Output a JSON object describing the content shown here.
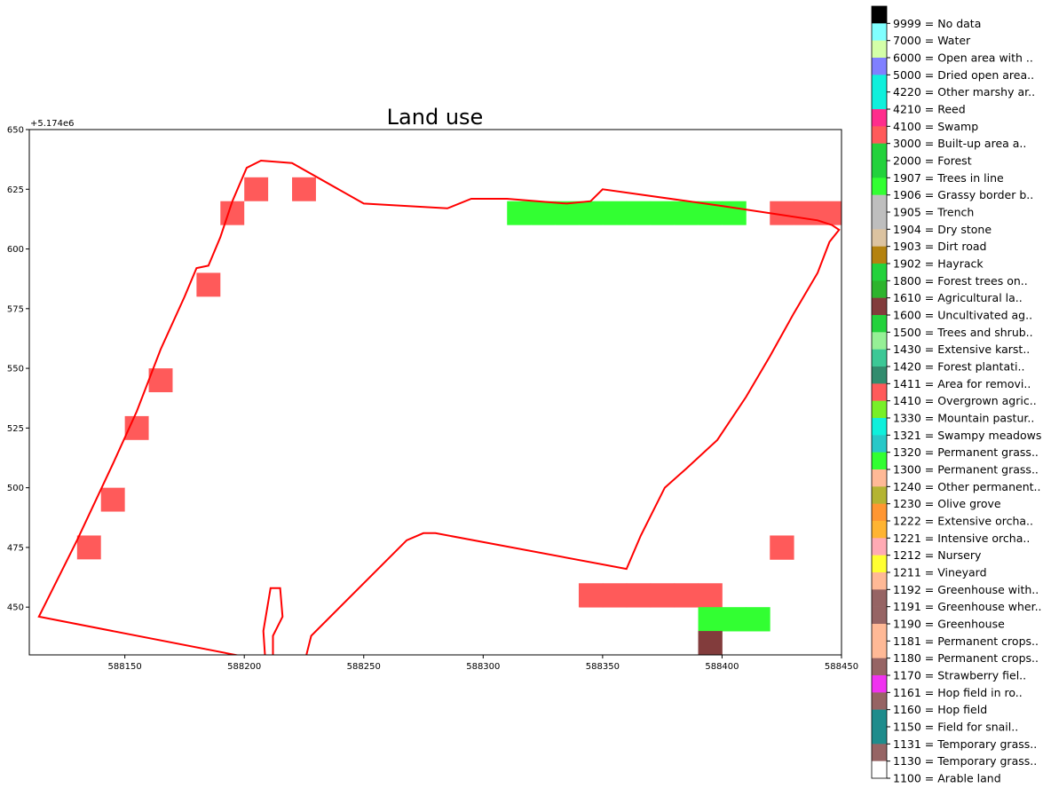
{
  "chart_data": {
    "type": "heatmap",
    "title": "Land use",
    "axis_offset_label": "+5.174e6",
    "xlim": [
      588110,
      588450
    ],
    "ylim": [
      430,
      650
    ],
    "x_ticks": [
      588150,
      588200,
      588250,
      588300,
      588350,
      588400,
      588450
    ],
    "y_ticks": [
      450,
      475,
      500,
      525,
      550,
      575,
      600,
      625,
      650
    ],
    "cell_size": 10,
    "colormap_legend": [
      {
        "code": 9999,
        "label": "9999 = No data",
        "color": "#000000"
      },
      {
        "code": 7000,
        "label": "7000 = Water",
        "color": "#80ffff"
      },
      {
        "code": 6000,
        "label": "6000 = Open area with ..",
        "color": "#d4ffa8"
      },
      {
        "code": 5000,
        "label": "5000 = Dried open area..",
        "color": "#8080ff"
      },
      {
        "code": 4220,
        "label": "4220 = Other marshy ar..",
        "color": "#0ff0dc"
      },
      {
        "code": 4210,
        "label": "4210 = Reed",
        "color": "#0ff0dc"
      },
      {
        "code": 4100,
        "label": "4100 = Swamp",
        "color": "#ff2d8c"
      },
      {
        "code": 3000,
        "label": "3000 = Built-up area a..",
        "color": "#ff5a5a"
      },
      {
        "code": 2000,
        "label": "2000 = Forest",
        "color": "#23d23c"
      },
      {
        "code": 1907,
        "label": "1907 = Trees in line",
        "color": "#23d23c"
      },
      {
        "code": 1906,
        "label": "1906 = Grassy border b..",
        "color": "#32ff32"
      },
      {
        "code": 1905,
        "label": "1905 = Trench",
        "color": "#bebebe"
      },
      {
        "code": 1904,
        "label": "1904 = Dry stone",
        "color": "#bebebe"
      },
      {
        "code": 1903,
        "label": "1903 = Dirt road",
        "color": "#dcc3a0"
      },
      {
        "code": 1902,
        "label": "1902 = Hayrack",
        "color": "#b4820f"
      },
      {
        "code": 1800,
        "label": "1800 = Forest trees on..",
        "color": "#23d23c"
      },
      {
        "code": 1610,
        "label": "1610 = Agricultural la..",
        "color": "#2db42d"
      },
      {
        "code": 1600,
        "label": "1600 = Uncultivated ag..",
        "color": "#823c3c"
      },
      {
        "code": 1500,
        "label": "1500 = Trees and shrub..",
        "color": "#23d23c"
      },
      {
        "code": 1430,
        "label": "1430 = Extensive karst..",
        "color": "#96f096"
      },
      {
        "code": 1420,
        "label": "1420 = Forest plantati..",
        "color": "#3cc896"
      },
      {
        "code": 1411,
        "label": "1411 = Area for removi..",
        "color": "#328c6e"
      },
      {
        "code": 1410,
        "label": "1410 = Overgrown agric..",
        "color": "#ff5a5a"
      },
      {
        "code": 1330,
        "label": "1330 = Mountain pastur..",
        "color": "#78f028"
      },
      {
        "code": 1321,
        "label": "1321 = Swampy meadows",
        "color": "#0ff0dc"
      },
      {
        "code": 1320,
        "label": "1320 = Permanent grass..",
        "color": "#28c8c8"
      },
      {
        "code": 1300,
        "label": "1300 = Permanent grass..",
        "color": "#32ff32"
      },
      {
        "code": 1240,
        "label": "1240 = Other permanent..",
        "color": "#ffb996"
      },
      {
        "code": 1230,
        "label": "1230 = Olive grove",
        "color": "#b4b432"
      },
      {
        "code": 1222,
        "label": "1222 = Extensive orcha..",
        "color": "#ff9632"
      },
      {
        "code": 1221,
        "label": "1221 = Intensive orcha..",
        "color": "#ffb432"
      },
      {
        "code": 1212,
        "label": "1212 = Nursery",
        "color": "#ffaab4"
      },
      {
        "code": 1211,
        "label": "1211 = Vineyard",
        "color": "#ffff32"
      },
      {
        "code": 1192,
        "label": "1192 = Greenhouse with..",
        "color": "#ffb996"
      },
      {
        "code": 1191,
        "label": "1191 = Greenhouse wher..",
        "color": "#966464"
      },
      {
        "code": 1190,
        "label": "1190 = Greenhouse",
        "color": "#966464"
      },
      {
        "code": 1181,
        "label": "1181 = Permanent crops..",
        "color": "#ffb996"
      },
      {
        "code": 1180,
        "label": "1180 = Permanent crops..",
        "color": "#ffb996"
      },
      {
        "code": 1170,
        "label": "1170 = Strawberry fiel..",
        "color": "#966464"
      },
      {
        "code": 1161,
        "label": "1161 = Hop field in ro..",
        "color": "#f032f0"
      },
      {
        "code": 1160,
        "label": "1160 = Hop field",
        "color": "#966464"
      },
      {
        "code": 1150,
        "label": "1150 = Field for snail..",
        "color": "#1e8c8c"
      },
      {
        "code": 1131,
        "label": "1131 = Temporary grass..",
        "color": "#1e8c8c"
      },
      {
        "code": 1130,
        "label": "1130 = Temporary grass..",
        "color": "#966464"
      },
      {
        "code": 1100,
        "label": "1100 = Arable land",
        "color": "#ffffff"
      }
    ],
    "cells": {
      "x_start": 588110,
      "y_top": 640,
      "rows": [
        "..........11...........................",
        ".........31311.........................",
        "........31111111....2222222222.3333....",
        "........11111111111111111111111111..33",
        "........111111111111111111111111111133",
        ".......3111111111111111111111111111111.",
        "......11111111111111111111111111111111.",
        "......111111111111111111111111111111113",
        ".....1111111111111111111111111111111111",
        ".....3111111111111111111111111111111113",
        ".....11111111111111111111111111111111..",
        "....311111111111111111111111111111111..",
        "....11111111111111111111111111111113...",
        "...1111111111111111111111111111111.....",
        "...3111111111111111111111111111111.....",
        "..111111111111111111111111111111.......",
        "..311111111111111111111111111113.......",
        "..111111111111111111111111111..........",
        ".1111111111111111111111333333..........",
        ".1111111111111111111111.....222........",
        ".1111111111111111111111.....4..........",
        ".11111111111111111112..................",
        "3111111111111111111112.................",
        "....22222211111111.....................",
        "........................................"
      ],
      "legend_of_symbols": {
        "1": 1100,
        "2": 1300,
        "3": 3000,
        "4": 1600
      }
    },
    "boundary_polygon": [
      [
        588226,
        430
      ],
      [
        588228,
        438
      ],
      [
        588268,
        478
      ],
      [
        588275,
        481
      ],
      [
        588280,
        481
      ],
      [
        588360,
        466
      ],
      [
        588366,
        480
      ],
      [
        588376,
        500
      ],
      [
        588385,
        508
      ],
      [
        588398,
        520
      ],
      [
        588410,
        538
      ],
      [
        588420,
        555
      ],
      [
        588430,
        573
      ],
      [
        588440,
        590
      ],
      [
        588445,
        603
      ],
      [
        588449,
        608
      ],
      [
        588446,
        610
      ],
      [
        588440,
        612
      ],
      [
        588400,
        618
      ],
      [
        588350,
        625
      ],
      [
        588345,
        620
      ],
      [
        588335,
        619
      ],
      [
        588310,
        621
      ],
      [
        588295,
        621
      ],
      [
        588285,
        617
      ],
      [
        588250,
        619
      ],
      [
        588220,
        636
      ],
      [
        588207,
        637
      ],
      [
        588201,
        634
      ],
      [
        588195,
        620
      ],
      [
        588190,
        605
      ],
      [
        588185,
        593
      ],
      [
        588180,
        592
      ],
      [
        588175,
        580
      ],
      [
        588165,
        558
      ],
      [
        588155,
        532
      ],
      [
        588145,
        510
      ],
      [
        588130,
        478
      ],
      [
        588120,
        458
      ],
      [
        588114,
        446
      ],
      [
        588222,
        425
      ],
      [
        588226,
        430
      ]
    ],
    "inner_polygon": [
      [
        588209,
        425
      ],
      [
        588208,
        440
      ],
      [
        588211,
        458
      ],
      [
        588215,
        458
      ],
      [
        588216,
        446
      ],
      [
        588212,
        438
      ],
      [
        588212,
        425
      ]
    ]
  }
}
